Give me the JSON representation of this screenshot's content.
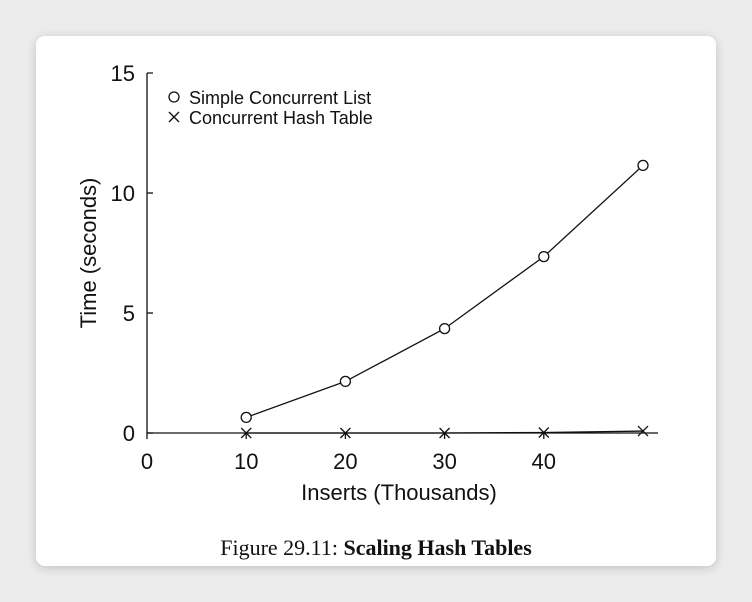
{
  "chart_data": {
    "type": "line",
    "x": [
      10,
      20,
      30,
      40,
      50
    ],
    "series": [
      {
        "name": "Simple Concurrent List",
        "marker": "circle",
        "values": [
          0.65,
          2.15,
          4.35,
          7.35,
          11.15
        ]
      },
      {
        "name": "Concurrent Hash Table",
        "marker": "x",
        "values": [
          0.0,
          0.0,
          0.0,
          0.02,
          0.08
        ]
      }
    ],
    "xlabel": "Inserts (Thousands)",
    "ylabel": "Time (seconds)",
    "xlim": [
      0,
      50
    ],
    "ylim": [
      0,
      15
    ],
    "xticks": [
      0,
      10,
      20,
      30,
      40
    ],
    "yticks": [
      0,
      5,
      10,
      15
    ],
    "grid": false,
    "legend": "top-left"
  },
  "caption": {
    "prefix": "Figure 29.11:",
    "title": "Scaling Hash Tables"
  },
  "colors": {
    "line": "#111111",
    "card_background": "#ffffff",
    "page_background": "#ececec"
  }
}
